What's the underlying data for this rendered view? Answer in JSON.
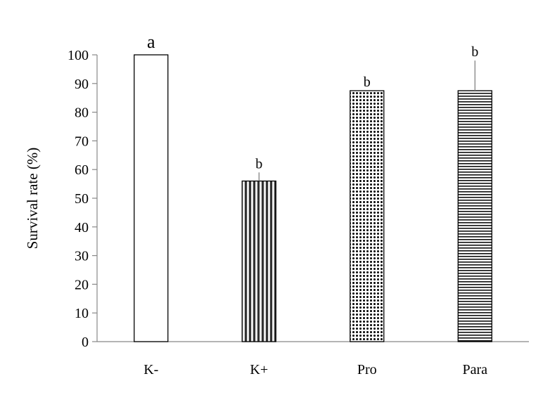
{
  "chart_data": {
    "type": "bar",
    "title": "",
    "xlabel": "",
    "ylabel": "Survival rate (%)",
    "ylim": [
      0,
      100
    ],
    "yticks": [
      0,
      10,
      20,
      30,
      40,
      50,
      60,
      70,
      80,
      90,
      100
    ],
    "grid": false,
    "categories": [
      "K-",
      "K+",
      "Pro",
      "Para"
    ],
    "values": [
      100,
      56,
      87.5,
      87.5
    ],
    "error_upper": [
      0,
      3,
      0,
      10.5
    ],
    "significance_letters": [
      "a",
      "b",
      "b",
      "b"
    ],
    "bar_patterns": [
      "solid-white",
      "vertical-stripes",
      "dots",
      "horizontal-stripes"
    ],
    "colors": {
      "bar_stroke": "#000000",
      "pattern_ink": "#000000",
      "bar_fill_base": "#ffffff"
    }
  }
}
